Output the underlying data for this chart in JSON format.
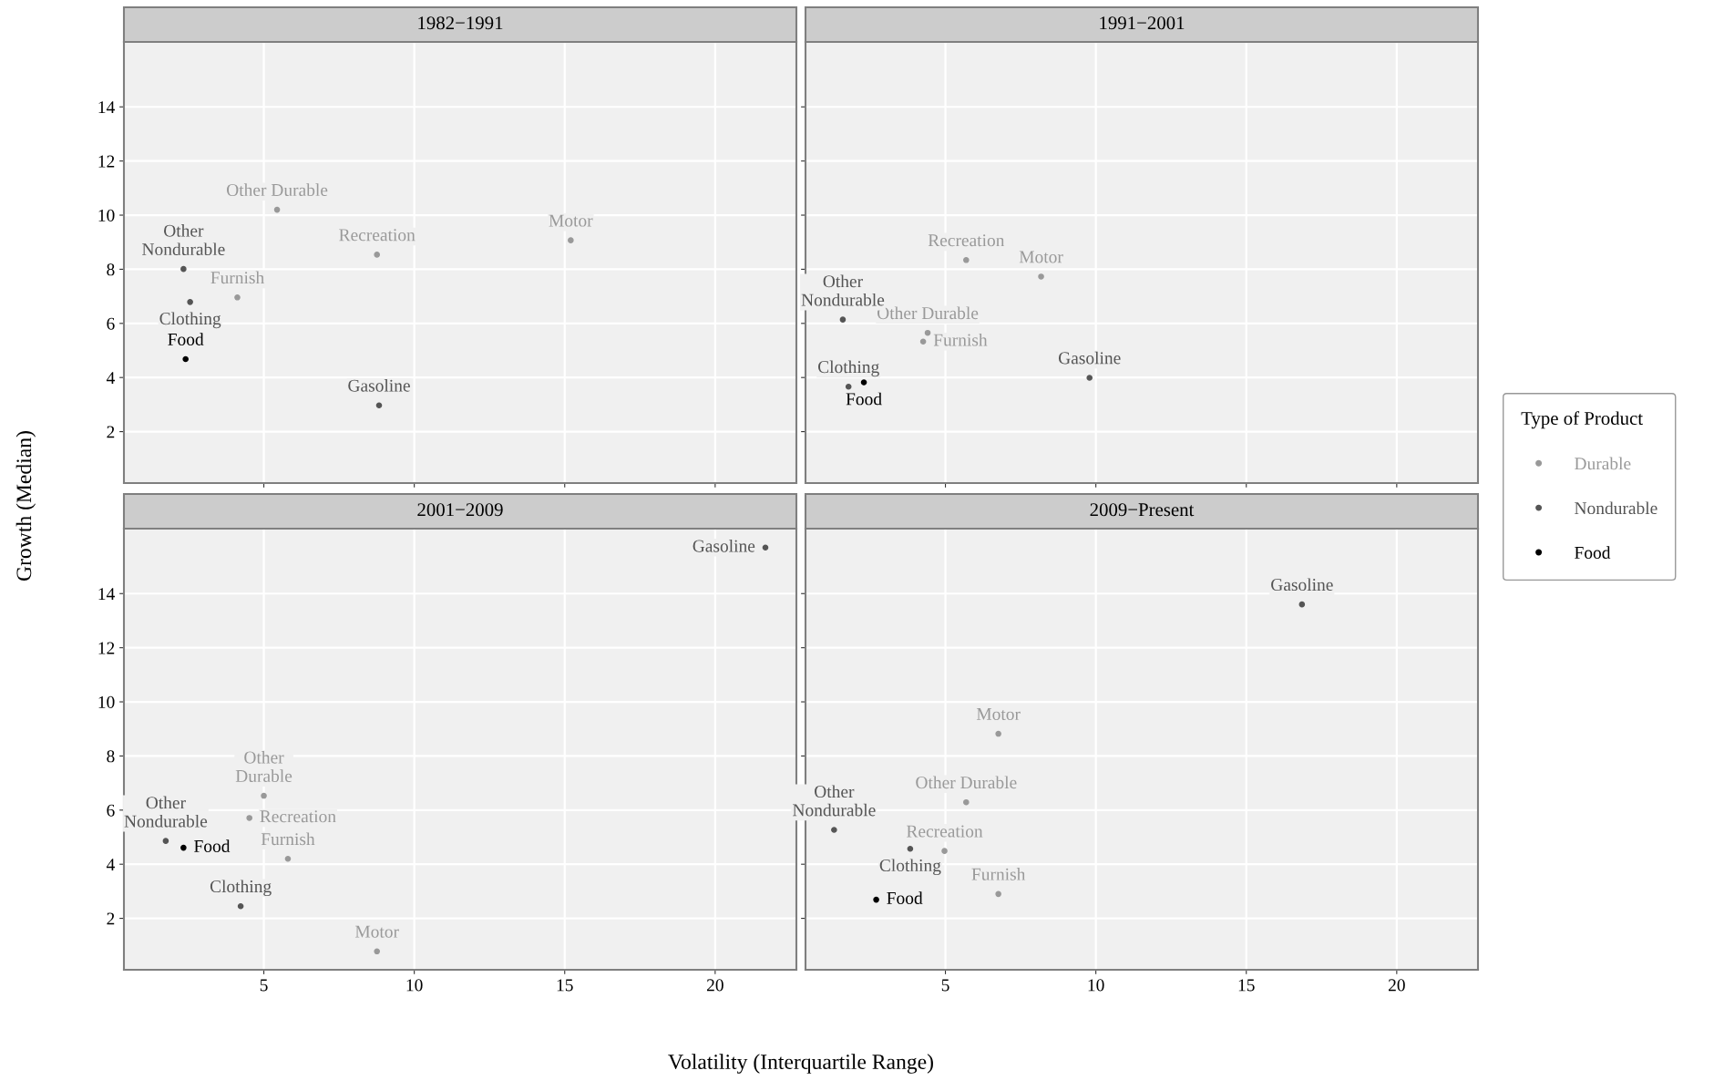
{
  "chart_data": [
    {
      "type": "scatter",
      "title": "1982−1991",
      "ylabel": "Growth (Median)",
      "xlim": [
        0.35,
        22.7
      ],
      "ylim": [
        0.1,
        16.4
      ],
      "xticks": [
        5,
        10,
        15,
        20
      ],
      "yticks": [
        2,
        4,
        6,
        8,
        10,
        12,
        14
      ],
      "grid": true,
      "tick_labels": "y",
      "marker": "circle",
      "series": [
        {
          "color": "#999999",
          "x": [
            5.44,
            8.76,
            15.2,
            4.12
          ],
          "values": [
            10.2,
            8.54,
            9.07,
            6.96
          ]
        },
        {
          "color": "#555555",
          "x": [
            2.33,
            2.55,
            8.83
          ],
          "values": [
            8.01,
            6.79,
            2.97
          ]
        },
        {
          "color": "#000000",
          "x": [
            2.4
          ],
          "values": [
            4.68
          ]
        }
      ],
      "annotations": [
        {
          "text": "Other Durable",
          "x": 5.44,
          "y": 10.2
        },
        {
          "text": "Recreation",
          "x": 8.76,
          "y": 8.54
        },
        {
          "text": "Motor",
          "x": 15.2,
          "y": 9.07
        },
        {
          "text": "Furnish",
          "x": 4.12,
          "y": 6.96
        },
        {
          "text": "Other\nNondurable",
          "x": 2.33,
          "y": 8.01
        },
        {
          "text": "Clothing",
          "x": 2.55,
          "y": 6.79
        },
        {
          "text": "Gasoline",
          "x": 8.83,
          "y": 2.97
        },
        {
          "text": "Food",
          "x": 2.4,
          "y": 4.68
        }
      ]
    },
    {
      "type": "scatter",
      "title": "1991−2001",
      "xlim": [
        0.35,
        22.7
      ],
      "ylim": [
        0.1,
        16.4
      ],
      "xticks": [
        5,
        10,
        15,
        20
      ],
      "yticks": [
        2,
        4,
        6,
        8,
        10,
        12,
        14
      ],
      "grid": true,
      "tick_labels": false,
      "marker": "circle",
      "series": [
        {
          "color": "#999999",
          "x": [
            5.69,
            8.18,
            4.41,
            4.26
          ],
          "values": [
            8.34,
            7.73,
            5.65,
            5.33
          ]
        },
        {
          "color": "#555555",
          "x": [
            1.59,
            9.79,
            1.78
          ],
          "values": [
            6.14,
            3.99,
            3.66
          ]
        },
        {
          "color": "#000000",
          "x": [
            2.29
          ],
          "values": [
            3.82
          ]
        }
      ],
      "annotations": [
        {
          "text": "Recreation",
          "x": 5.69,
          "y": 8.34
        },
        {
          "text": "Motor",
          "x": 8.18,
          "y": 7.73
        },
        {
          "text": "Other Durable",
          "x": 4.41,
          "y": 5.65
        },
        {
          "text": "Furnish",
          "x": 4.26,
          "y": 5.33
        },
        {
          "text": "Other\nNondurable",
          "x": 1.59,
          "y": 6.14
        },
        {
          "text": "Gasoline",
          "x": 9.79,
          "y": 3.99
        },
        {
          "text": "Clothing",
          "x": 1.78,
          "y": 3.66
        },
        {
          "text": "Food",
          "x": 2.29,
          "y": 3.82
        }
      ]
    },
    {
      "type": "scatter",
      "title": "2001−2009",
      "xlabel": "Volatility (Interquartile Range)",
      "xlim": [
        0.35,
        22.7
      ],
      "ylim": [
        0.1,
        16.4
      ],
      "xticks": [
        5,
        10,
        15,
        20
      ],
      "yticks": [
        2,
        4,
        6,
        8,
        10,
        12,
        14
      ],
      "grid": true,
      "marker": "circle",
      "series": [
        {
          "color": "#999999",
          "x": [
            5.0,
            4.52,
            5.8,
            8.76
          ],
          "values": [
            6.53,
            5.71,
            4.2,
            0.78
          ]
        },
        {
          "color": "#555555",
          "x": [
            21.67,
            1.74,
            4.23
          ],
          "values": [
            15.7,
            4.86,
            2.45
          ]
        },
        {
          "color": "#000000",
          "x": [
            2.33
          ],
          "values": [
            4.61
          ]
        }
      ],
      "annotations": [
        {
          "text": "Gasoline",
          "x": 21.67,
          "y": 15.7
        },
        {
          "text": "Other\nDurable",
          "x": 5.0,
          "y": 6.53
        },
        {
          "text": "Recreation",
          "x": 4.52,
          "y": 5.71
        },
        {
          "text": "Furnish",
          "x": 5.8,
          "y": 4.2
        },
        {
          "text": "Motor",
          "x": 8.76,
          "y": 0.78
        },
        {
          "text": "Other\nNondurable",
          "x": 1.74,
          "y": 4.86
        },
        {
          "text": "Clothing",
          "x": 4.23,
          "y": 2.45
        },
        {
          "text": "Food",
          "x": 2.33,
          "y": 4.61
        }
      ]
    },
    {
      "type": "scatter",
      "title": "2009−Present",
      "xlim": [
        0.35,
        22.7
      ],
      "ylim": [
        0.1,
        16.4
      ],
      "xticks": [
        5,
        10,
        15,
        20
      ],
      "yticks": [
        2,
        4,
        6,
        8,
        10,
        12,
        14
      ],
      "grid": true,
      "tick_labels": "x",
      "marker": "circle",
      "legend": "top right",
      "legend_title": "Type of Product",
      "series": [
        {
          "name": "Durable",
          "color": "#999999",
          "x": [
            6.76,
            5.69,
            4.97,
            6.76
          ],
          "values": [
            8.82,
            6.29,
            4.49,
            2.9
          ]
        },
        {
          "name": "Nondurable",
          "color": "#555555",
          "x": [
            16.85,
            1.3,
            3.83
          ],
          "values": [
            13.6,
            5.27,
            4.57
          ]
        },
        {
          "name": "Food",
          "color": "#000000",
          "x": [
            2.7
          ],
          "values": [
            2.69
          ]
        }
      ],
      "annotations": [
        {
          "text": "Gasoline",
          "x": 16.85,
          "y": 13.6
        },
        {
          "text": "Motor",
          "x": 6.76,
          "y": 8.82
        },
        {
          "text": "Other Durable",
          "x": 5.69,
          "y": 6.29
        },
        {
          "text": "Recreation",
          "x": 4.97,
          "y": 4.49
        },
        {
          "text": "Furnish",
          "x": 6.76,
          "y": 2.9
        },
        {
          "text": "Other\nNondurable",
          "x": 1.3,
          "y": 5.27
        },
        {
          "text": "Clothing",
          "x": 3.83,
          "y": 4.57
        },
        {
          "text": "Food",
          "x": 2.7,
          "y": 2.69
        }
      ]
    }
  ]
}
